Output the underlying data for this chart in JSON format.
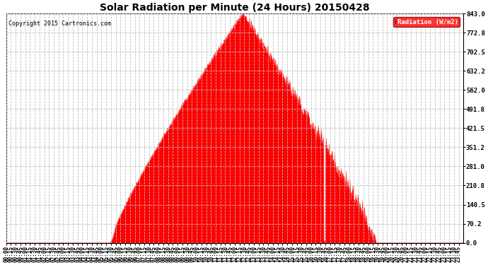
{
  "title": "Solar Radiation per Minute (24 Hours) 20150428",
  "copyright_text": "Copyright 2015 Cartronics.com",
  "legend_label": "Radiation (W/m2)",
  "fill_color": "#FF0000",
  "line_color": "#FF0000",
  "background_color": "#FFFFFF",
  "grid_color": "#BEBEBE",
  "yticks": [
    0.0,
    70.2,
    140.5,
    210.8,
    281.0,
    351.2,
    421.5,
    491.8,
    562.0,
    632.2,
    702.5,
    772.8,
    843.0
  ],
  "ymax": 843.0,
  "ymin": 0.0,
  "total_minutes": 1440,
  "sunrise_minute": 325,
  "sunset_minute": 1165,
  "peak_minute": 745,
  "peak_value": 843.0,
  "xtick_interval": 15,
  "dpi": 100,
  "figsize": [
    6.9,
    3.75
  ]
}
